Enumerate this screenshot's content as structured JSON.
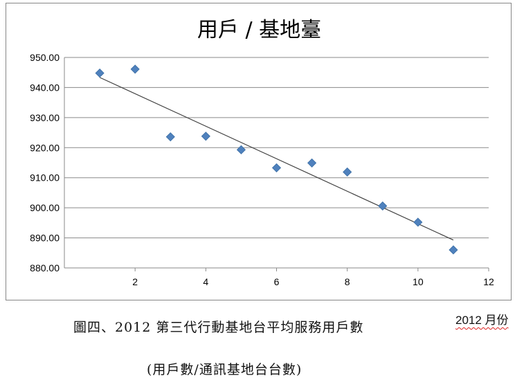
{
  "chart_data": {
    "type": "scatter",
    "title": "用戶 / 基地臺",
    "x_ticks": [
      2,
      4,
      6,
      8,
      10,
      12
    ],
    "y_ticks": [
      "880.00",
      "890.00",
      "900.00",
      "910.00",
      "920.00",
      "930.00",
      "940.00",
      "950.00"
    ],
    "xlim": [
      0,
      12
    ],
    "ylim": [
      880,
      950
    ],
    "grid": "horizontal",
    "legend": "none",
    "marker": "diamond",
    "marker_color": "#4f81bd",
    "trendline": {
      "type": "linear",
      "color": "#404040"
    },
    "series": [
      {
        "x": [
          1,
          2,
          3,
          4,
          5,
          6,
          7,
          8,
          9,
          10,
          11
        ],
        "y": [
          944.8,
          946.1,
          923.6,
          923.8,
          919.3,
          913.3,
          914.9,
          911.9,
          900.6,
          895.2,
          886.0
        ]
      }
    ]
  },
  "caption": {
    "main": "圖四、2012 第三代行動基地台平均服務用戶數",
    "month_label": "2012 月份",
    "sub": "(用戶數/通訊基地台台數)"
  }
}
